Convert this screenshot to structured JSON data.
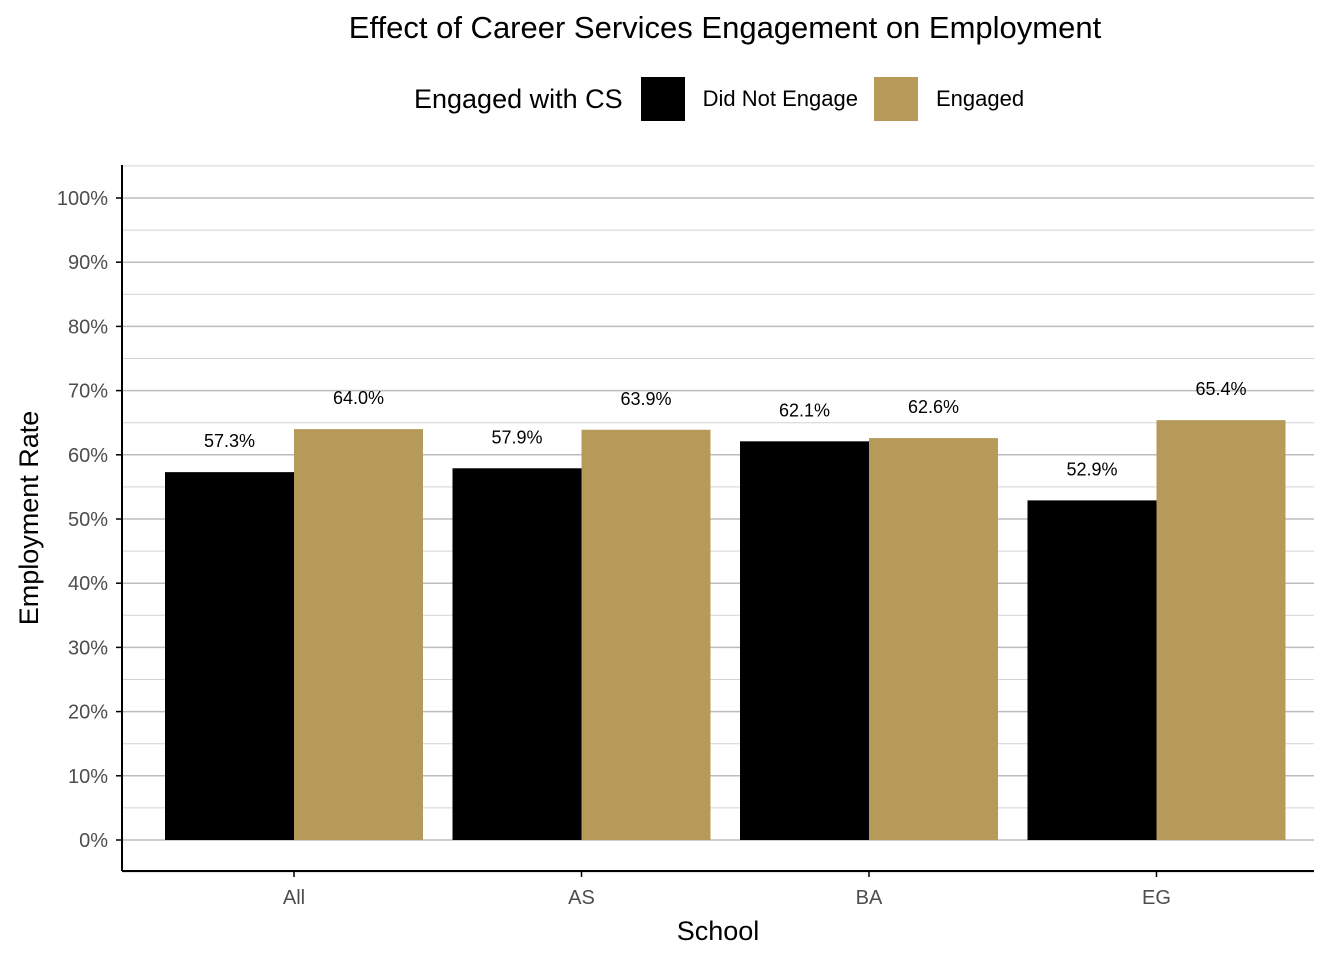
{
  "chart_data": {
    "type": "bar",
    "title": "Effect of Career Services Engagement on Employment",
    "xlabel": "School",
    "ylabel": "Employment Rate",
    "categories": [
      "All",
      "AS",
      "BA",
      "EG"
    ],
    "legend_title": "Engaged with CS",
    "legend_position": "top",
    "series": [
      {
        "name": "Did Not Engage",
        "color": "#000000",
        "values": [
          57.3,
          57.9,
          62.1,
          52.9
        ],
        "labels": [
          "57.3%",
          "57.9%",
          "62.1%",
          "52.9%"
        ]
      },
      {
        "name": "Engaged",
        "color": "#B59A5A",
        "values": [
          64.0,
          63.9,
          62.6,
          65.4
        ],
        "labels": [
          "64.0%",
          "63.9%",
          "62.6%",
          "65.4%"
        ]
      }
    ],
    "ylim": [
      0,
      100
    ],
    "yticks": [
      0,
      10,
      20,
      30,
      40,
      50,
      60,
      70,
      80,
      90,
      100
    ],
    "ytick_labels": [
      "0%",
      "10%",
      "20%",
      "30%",
      "40%",
      "50%",
      "60%",
      "70%",
      "80%",
      "90%",
      "100%"
    ],
    "grid": true
  }
}
